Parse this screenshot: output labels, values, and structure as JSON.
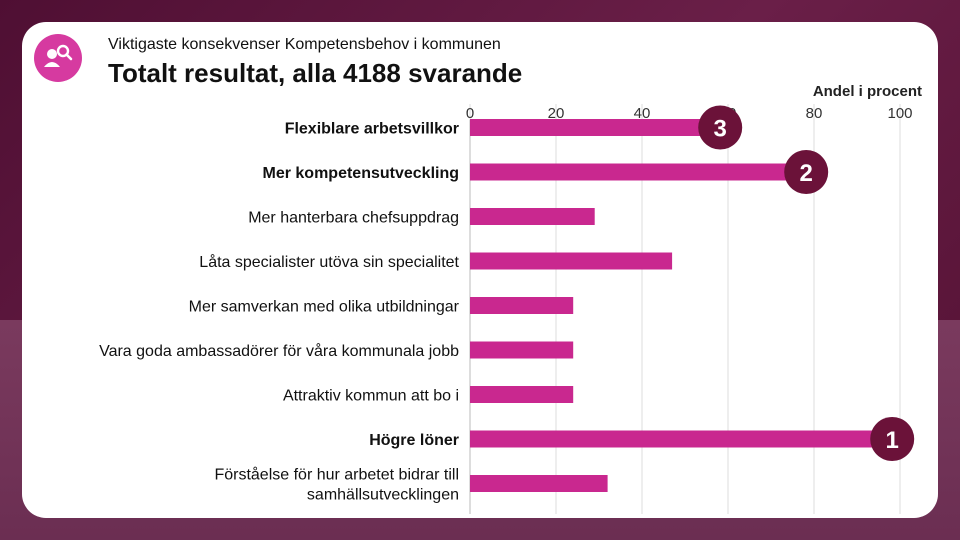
{
  "header": {
    "subtitle": "Viktigaste konsekvenser Kompetensbehov i kommunen",
    "title": "Totalt resultat, alla 4188 svarande"
  },
  "colors": {
    "bar": "#c9288f",
    "rank_badge": "#6b1239",
    "logo": "#d63aa0",
    "grid": "#dddddd"
  },
  "icons": {
    "logo": "people-search-icon"
  },
  "chart_data": {
    "type": "bar",
    "orientation": "horizontal",
    "title": "Totalt resultat, alla 4188 svarande",
    "xlabel": "Andel i procent",
    "xlim": [
      0,
      100
    ],
    "xticks": [
      0,
      20,
      40,
      60,
      80,
      100
    ],
    "categories": [
      "Flexiblare arbetsvillkor",
      "Mer kompetensutveckling",
      "Mer hanterbara chefsuppdrag",
      "Låta specialister utöva sin specialitet",
      "Mer samverkan med olika utbildningar",
      "Vara goda ambassadörer för våra kommunala jobb",
      "Attraktiv kommun att bo i",
      "Högre löner",
      "Förståelse för hur arbetet bidrar till samhällsutvecklingen"
    ],
    "category_lines": [
      [
        "Flexiblare arbetsvillkor"
      ],
      [
        "Mer kompetensutveckling"
      ],
      [
        "Mer hanterbara chefsuppdrag"
      ],
      [
        "Låta specialister utöva sin specialitet"
      ],
      [
        "Mer samverkan med olika utbildningar"
      ],
      [
        "Vara goda ambassadörer för våra kommunala jobb"
      ],
      [
        "Attraktiv kommun att bo i"
      ],
      [
        "Högre löner"
      ],
      [
        "Förståelse för hur arbetet bidrar till",
        "samhällsutvecklingen"
      ]
    ],
    "bold_categories": [
      0,
      1,
      7
    ],
    "values": [
      54,
      74,
      29,
      47,
      24,
      24,
      24,
      94,
      32
    ],
    "rank_badges": [
      {
        "category_index": 0,
        "rank": "3"
      },
      {
        "category_index": 1,
        "rank": "2"
      },
      {
        "category_index": 7,
        "rank": "1"
      }
    ]
  }
}
